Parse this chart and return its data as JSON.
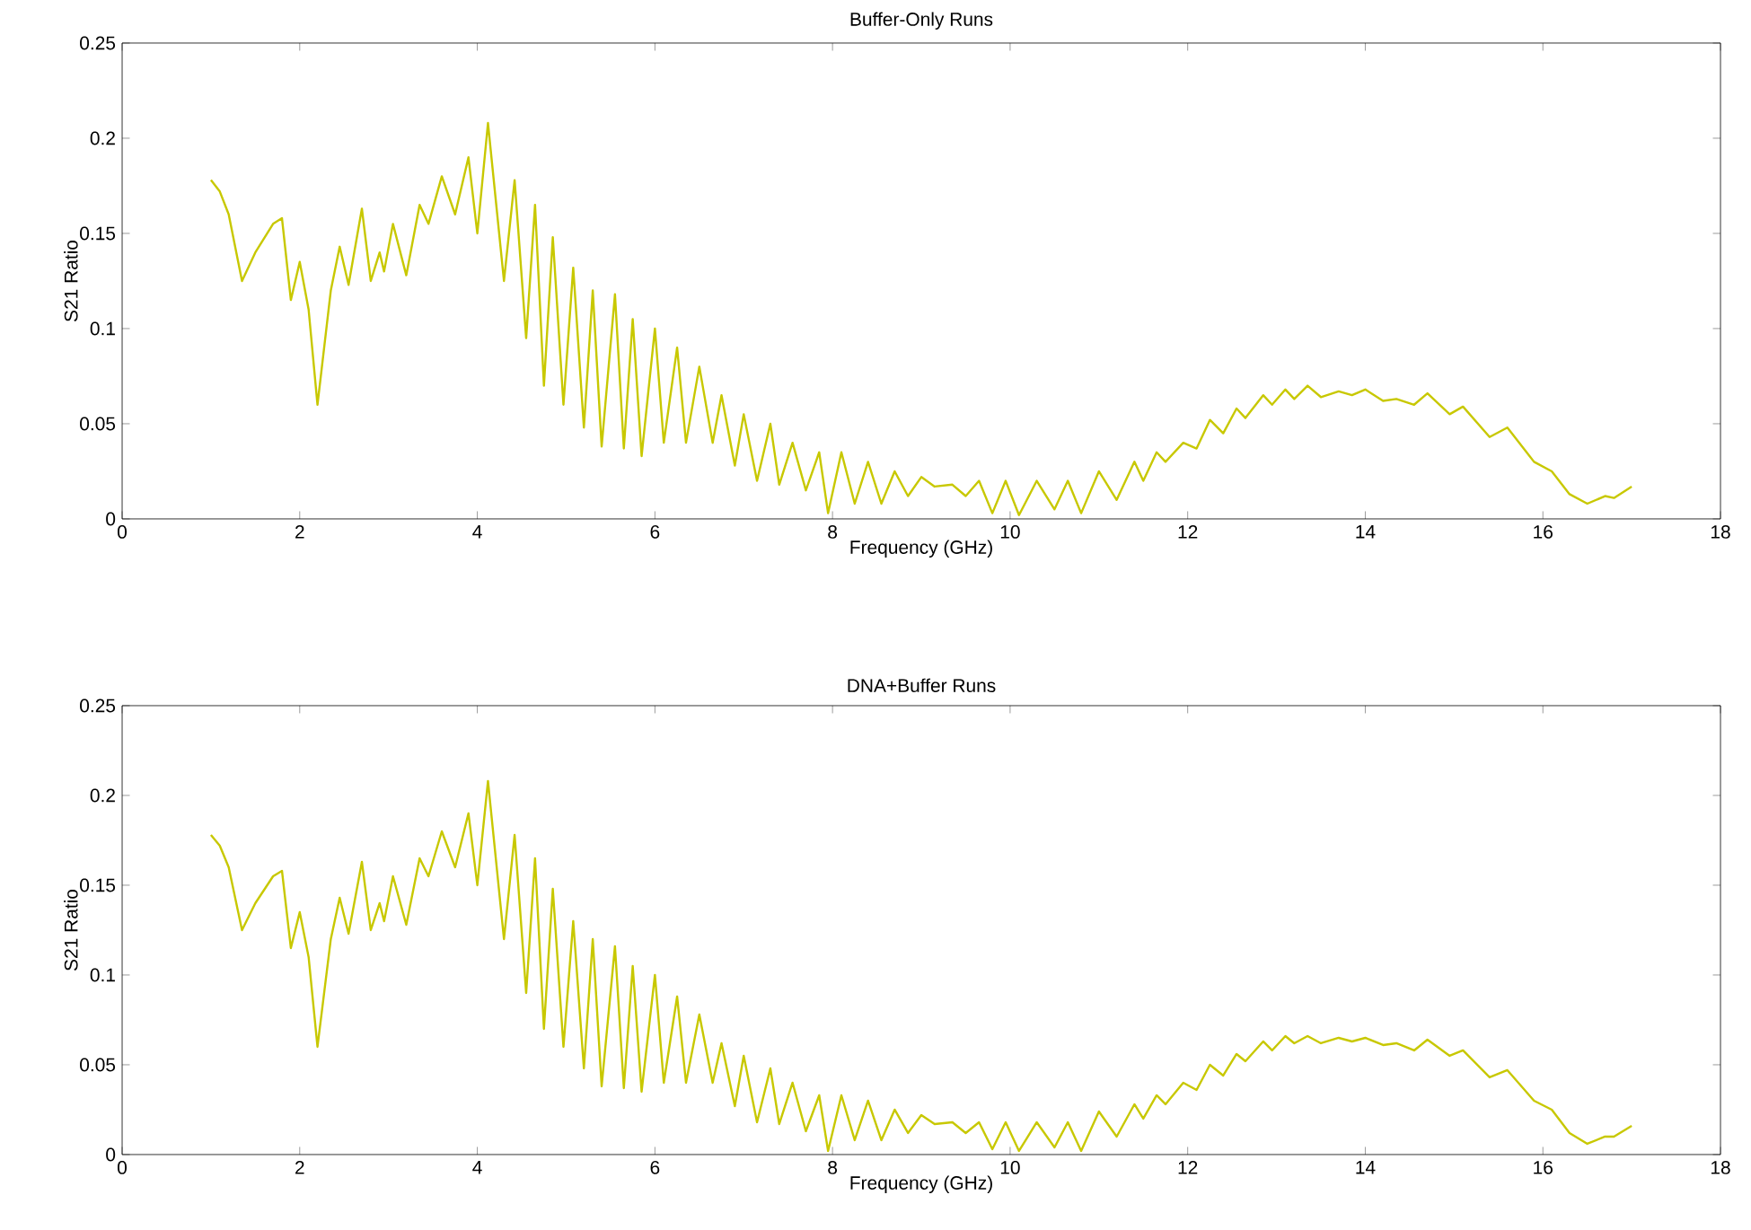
{
  "chart_data": [
    {
      "type": "line",
      "title": "Buffer-Only Runs",
      "xlabel": "Frequency (GHz)",
      "ylabel": "S21 Ratio",
      "xlim": [
        0,
        18
      ],
      "ylim": [
        0,
        0.25
      ],
      "xticks": [
        0,
        2,
        4,
        6,
        8,
        10,
        12,
        14,
        16,
        18
      ],
      "yticks": [
        0,
        0.05,
        0.1,
        0.15,
        0.2,
        0.25
      ],
      "x": [
        1.0,
        1.1,
        1.2,
        1.35,
        1.5,
        1.7,
        1.8,
        1.9,
        2.0,
        2.1,
        2.2,
        2.35,
        2.45,
        2.55,
        2.7,
        2.8,
        2.9,
        2.95,
        3.05,
        3.2,
        3.35,
        3.45,
        3.6,
        3.75,
        3.9,
        4.0,
        4.12,
        4.3,
        4.42,
        4.55,
        4.65,
        4.75,
        4.85,
        4.97,
        5.08,
        5.2,
        5.3,
        5.4,
        5.55,
        5.65,
        5.75,
        5.85,
        6.0,
        6.1,
        6.25,
        6.35,
        6.5,
        6.65,
        6.75,
        6.9,
        7.0,
        7.15,
        7.3,
        7.4,
        7.55,
        7.7,
        7.85,
        7.95,
        8.1,
        8.25,
        8.4,
        8.55,
        8.7,
        8.85,
        9.0,
        9.15,
        9.35,
        9.5,
        9.65,
        9.8,
        9.95,
        10.1,
        10.3,
        10.5,
        10.65,
        10.8,
        11.0,
        11.2,
        11.4,
        11.5,
        11.65,
        11.75,
        11.95,
        12.1,
        12.25,
        12.4,
        12.55,
        12.65,
        12.85,
        12.95,
        13.1,
        13.2,
        13.35,
        13.5,
        13.7,
        13.85,
        14.0,
        14.2,
        14.35,
        14.55,
        14.7,
        14.95,
        15.1,
        15.4,
        15.6,
        15.9,
        16.1,
        16.3,
        16.5,
        16.7,
        16.8,
        17.0
      ],
      "series": [
        {
          "color": "#c8c800",
          "values": [
            0.178,
            0.172,
            0.16,
            0.125,
            0.14,
            0.155,
            0.158,
            0.115,
            0.135,
            0.11,
            0.06,
            0.12,
            0.143,
            0.123,
            0.163,
            0.125,
            0.14,
            0.13,
            0.155,
            0.128,
            0.165,
            0.155,
            0.18,
            0.16,
            0.19,
            0.15,
            0.208,
            0.125,
            0.178,
            0.095,
            0.165,
            0.07,
            0.148,
            0.06,
            0.132,
            0.048,
            0.12,
            0.038,
            0.118,
            0.037,
            0.105,
            0.033,
            0.1,
            0.04,
            0.09,
            0.04,
            0.08,
            0.04,
            0.065,
            0.028,
            0.055,
            0.02,
            0.05,
            0.018,
            0.04,
            0.015,
            0.035,
            0.003,
            0.035,
            0.008,
            0.03,
            0.008,
            0.025,
            0.012,
            0.022,
            0.017,
            0.018,
            0.012,
            0.02,
            0.003,
            0.02,
            0.002,
            0.02,
            0.005,
            0.02,
            0.003,
            0.025,
            0.01,
            0.03,
            0.02,
            0.035,
            0.03,
            0.04,
            0.037,
            0.052,
            0.045,
            0.058,
            0.053,
            0.065,
            0.06,
            0.068,
            0.063,
            0.07,
            0.064,
            0.067,
            0.065,
            0.068,
            0.062,
            0.063,
            0.06,
            0.066,
            0.055,
            0.059,
            0.043,
            0.048,
            0.03,
            0.025,
            0.013,
            0.008,
            0.012,
            0.011,
            0.017
          ]
        }
      ]
    },
    {
      "type": "line",
      "title": "DNA+Buffer Runs",
      "xlabel": "Frequency (GHz)",
      "ylabel": "S21 Ratio",
      "xlim": [
        0,
        18
      ],
      "ylim": [
        0,
        0.25
      ],
      "xticks": [
        0,
        2,
        4,
        6,
        8,
        10,
        12,
        14,
        16,
        18
      ],
      "yticks": [
        0,
        0.05,
        0.1,
        0.15,
        0.2,
        0.25
      ],
      "x": [
        1.0,
        1.1,
        1.2,
        1.35,
        1.5,
        1.7,
        1.8,
        1.9,
        2.0,
        2.1,
        2.2,
        2.35,
        2.45,
        2.55,
        2.7,
        2.8,
        2.9,
        2.95,
        3.05,
        3.2,
        3.35,
        3.45,
        3.6,
        3.75,
        3.9,
        4.0,
        4.12,
        4.3,
        4.42,
        4.55,
        4.65,
        4.75,
        4.85,
        4.97,
        5.08,
        5.2,
        5.3,
        5.4,
        5.55,
        5.65,
        5.75,
        5.85,
        6.0,
        6.1,
        6.25,
        6.35,
        6.5,
        6.65,
        6.75,
        6.9,
        7.0,
        7.15,
        7.3,
        7.4,
        7.55,
        7.7,
        7.85,
        7.95,
        8.1,
        8.25,
        8.4,
        8.55,
        8.7,
        8.85,
        9.0,
        9.15,
        9.35,
        9.5,
        9.65,
        9.8,
        9.95,
        10.1,
        10.3,
        10.5,
        10.65,
        10.8,
        11.0,
        11.2,
        11.4,
        11.5,
        11.65,
        11.75,
        11.95,
        12.1,
        12.25,
        12.4,
        12.55,
        12.65,
        12.85,
        12.95,
        13.1,
        13.2,
        13.35,
        13.5,
        13.7,
        13.85,
        14.0,
        14.2,
        14.35,
        14.55,
        14.7,
        14.95,
        15.1,
        15.4,
        15.6,
        15.9,
        16.1,
        16.3,
        16.5,
        16.7,
        16.8,
        17.0
      ],
      "series": [
        {
          "color": "#c8c800",
          "values": [
            0.178,
            0.172,
            0.16,
            0.125,
            0.14,
            0.155,
            0.158,
            0.115,
            0.135,
            0.11,
            0.06,
            0.12,
            0.143,
            0.123,
            0.163,
            0.125,
            0.14,
            0.13,
            0.155,
            0.128,
            0.165,
            0.155,
            0.18,
            0.16,
            0.19,
            0.15,
            0.208,
            0.12,
            0.178,
            0.09,
            0.165,
            0.07,
            0.148,
            0.06,
            0.13,
            0.048,
            0.12,
            0.038,
            0.116,
            0.037,
            0.105,
            0.035,
            0.1,
            0.04,
            0.088,
            0.04,
            0.078,
            0.04,
            0.062,
            0.027,
            0.055,
            0.018,
            0.048,
            0.017,
            0.04,
            0.013,
            0.033,
            0.002,
            0.033,
            0.008,
            0.03,
            0.008,
            0.025,
            0.012,
            0.022,
            0.017,
            0.018,
            0.012,
            0.018,
            0.003,
            0.018,
            0.002,
            0.018,
            0.004,
            0.018,
            0.002,
            0.024,
            0.01,
            0.028,
            0.02,
            0.033,
            0.028,
            0.04,
            0.036,
            0.05,
            0.044,
            0.056,
            0.052,
            0.063,
            0.058,
            0.066,
            0.062,
            0.066,
            0.062,
            0.065,
            0.063,
            0.065,
            0.061,
            0.062,
            0.058,
            0.064,
            0.055,
            0.058,
            0.043,
            0.047,
            0.03,
            0.025,
            0.012,
            0.006,
            0.01,
            0.01,
            0.016
          ]
        }
      ]
    }
  ]
}
